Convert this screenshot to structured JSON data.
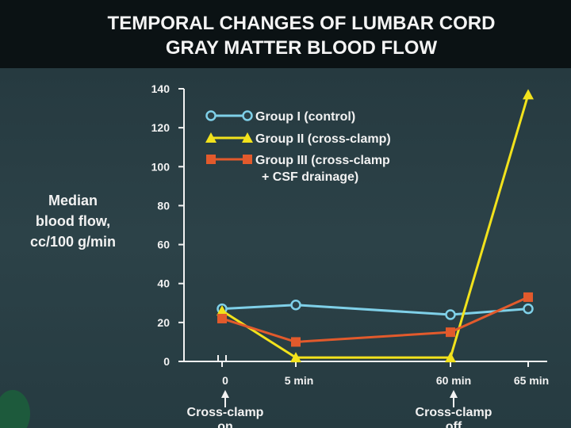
{
  "chart_data": {
    "type": "line",
    "title_lines": [
      "TEMPORAL CHANGES OF LUMBAR CORD",
      "GRAY MATTER BLOOD FLOW"
    ],
    "ylabel_lines": [
      "Median",
      "blood flow,",
      "cc/100 g/min"
    ],
    "x": [
      "0",
      "5 min",
      "60 min",
      "65 min"
    ],
    "yticks": [
      "0",
      "20",
      "40",
      "60",
      "80",
      "100",
      "120",
      "140"
    ],
    "ylim": [
      0,
      140
    ],
    "grid": false,
    "legend_position": "top-left inside plot",
    "series": [
      {
        "name": "Group I (control)",
        "label_lines": [
          "Group I (control)"
        ],
        "marker": "circle",
        "color": "#7fd0e8",
        "values": [
          27,
          29,
          24,
          27
        ]
      },
      {
        "name": "Group II (cross-clamp)",
        "label_lines": [
          "Group II (cross-clamp)"
        ],
        "marker": "triangle",
        "color": "#f2e21c",
        "values": [
          26,
          2,
          2,
          137
        ]
      },
      {
        "name": "Group III (cross-clamp + CSF drainage)",
        "label_lines": [
          "Group III (cross-clamp",
          "+ CSF drainage)"
        ],
        "marker": "square",
        "color": "#e25a2c",
        "values": [
          22,
          10,
          15,
          33
        ]
      }
    ],
    "annotations": [
      {
        "at": "0",
        "lines": [
          "Cross-clamp",
          "on"
        ]
      },
      {
        "at": "60 min",
        "lines": [
          "Cross-clamp",
          "off"
        ]
      }
    ]
  }
}
